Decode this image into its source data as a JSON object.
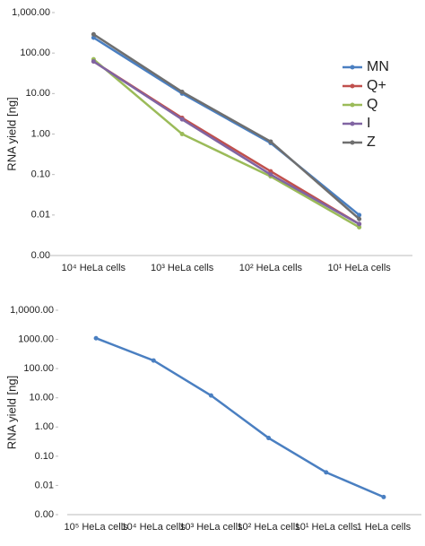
{
  "chart_data": [
    {
      "type": "line",
      "y_label": "RNA yield [ng]",
      "log_y": true,
      "legend": "right",
      "categories": [
        "10⁴ HeLa cells",
        "10³ HeLa cells",
        "10² HeLa cells",
        "10¹ HeLa cells"
      ],
      "ylim": [
        0.001,
        1000
      ],
      "yticks": [
        {
          "value": 0.001,
          "label": "0.00"
        },
        {
          "value": 0.01,
          "label": "0.01"
        },
        {
          "value": 0.1,
          "label": "0.10"
        },
        {
          "value": 1,
          "label": "1.00"
        },
        {
          "value": 10,
          "label": "10.00"
        },
        {
          "value": 100,
          "label": "100.00"
        },
        {
          "value": 1000,
          "label": "1,000.00"
        }
      ],
      "series": [
        {
          "name": "MN",
          "color": "#4a7fc1",
          "values": [
            240,
            10,
            0.6,
            0.01
          ]
        },
        {
          "name": "Q+",
          "color": "#c0504d",
          "values": [
            62,
            2.5,
            0.12,
            0.006
          ]
        },
        {
          "name": "Q",
          "color": "#9bbb59",
          "values": [
            70,
            1.0,
            0.09,
            0.005
          ]
        },
        {
          "name": "I",
          "color": "#8064a2",
          "values": [
            62,
            2.3,
            0.1,
            0.006
          ]
        },
        {
          "name": "Z",
          "color": "#6f6f6f",
          "values": [
            290,
            11,
            0.65,
            0.008
          ]
        }
      ]
    },
    {
      "type": "line",
      "y_label": "RNA yield [ng]",
      "log_y": true,
      "categories": [
        "10⁵ HeLa cells",
        "10⁴ HeLa cells",
        "10³ HeLa cells",
        "10² HeLa cells",
        "10¹ HeLa cells",
        "1 HeLa cells"
      ],
      "ylim": [
        0.001,
        10000
      ],
      "yticks": [
        {
          "value": 0.001,
          "label": "0.00"
        },
        {
          "value": 0.01,
          "label": "0.01"
        },
        {
          "value": 0.1,
          "label": "0.10"
        },
        {
          "value": 1,
          "label": "1.00"
        },
        {
          "value": 10,
          "label": "10.00"
        },
        {
          "value": 100,
          "label": "100.00"
        },
        {
          "value": 1000,
          "label": "1000.00"
        },
        {
          "value": 10000,
          "label": "1,0000.00"
        }
      ],
      "series": [
        {
          "color": "#4a7fc1",
          "values": [
            1100,
            190,
            12,
            0.42,
            0.028,
            0.004
          ]
        }
      ]
    }
  ]
}
